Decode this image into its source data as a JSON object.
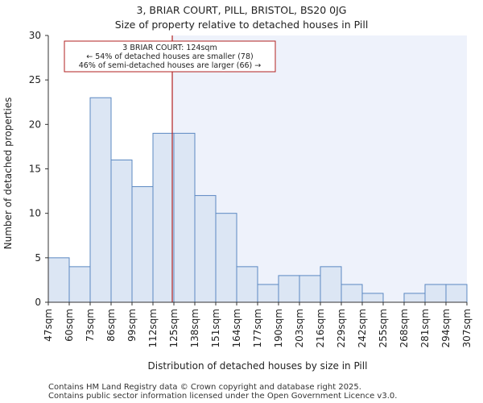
{
  "chart_data": {
    "type": "bar",
    "title": "3, BRIAR COURT, PILL, BRISTOL, BS20 0JG",
    "subtitle": "Size of property relative to detached houses in Pill",
    "xlabel": "Distribution of detached houses by size in Pill",
    "ylabel": "Number of detached properties",
    "bin_edges": [
      47,
      60,
      73,
      86,
      99,
      112,
      125,
      138,
      151,
      164,
      177,
      190,
      203,
      216,
      229,
      242,
      255,
      268,
      281,
      294,
      307
    ],
    "tick_labels": [
      "47sqm",
      "60sqm",
      "73sqm",
      "86sqm",
      "99sqm",
      "112sqm",
      "125sqm",
      "138sqm",
      "151sqm",
      "164sqm",
      "177sqm",
      "190sqm",
      "203sqm",
      "216sqm",
      "229sqm",
      "242sqm",
      "255sqm",
      "268sqm",
      "281sqm",
      "294sqm",
      "307sqm"
    ],
    "values": [
      5,
      4,
      23,
      16,
      13,
      19,
      19,
      12,
      10,
      4,
      2,
      3,
      3,
      4,
      2,
      1,
      0,
      1,
      2,
      2
    ],
    "ylim": [
      0,
      30
    ],
    "yticks": [
      0,
      5,
      10,
      15,
      20,
      25,
      30
    ],
    "xlim": [
      47,
      307
    ],
    "marker": {
      "value": 124,
      "color": "#b22222"
    },
    "annotation": {
      "line1": "3 BRIAR COURT: 124sqm",
      "line2": "← 54% of detached houses are smaller (78)",
      "line3": "46% of semi-detached houses are larger (66) →"
    },
    "colors": {
      "bar_fill": "#dce6f4",
      "bar_edge": "#5b88c2",
      "shade": "#eef2fb"
    }
  },
  "footer": {
    "line1": "Contains HM Land Registry data © Crown copyright and database right 2025.",
    "line2": "Contains public sector information licensed under the Open Government Licence v3.0."
  }
}
